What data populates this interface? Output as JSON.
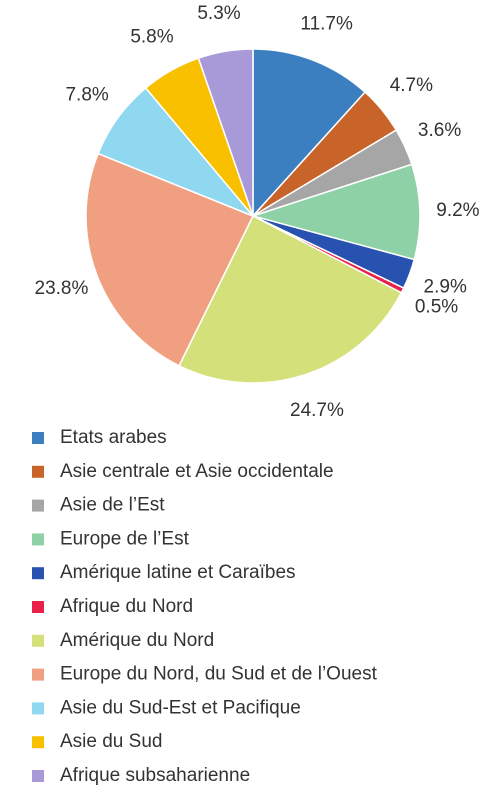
{
  "chart_data": {
    "type": "pie",
    "categories": [
      "Etats arabes",
      "Asie centrale et Asie occidentale",
      "Asie de l’Est",
      "Europe de l’Est",
      "Amérique latine et Caraïbes",
      "Afrique du Nord",
      "Amérique du Nord",
      "Europe du Nord, du Sud et de l’Ouest",
      "Asie du Sud-Est et Pacifique",
      "Asie du Sud",
      "Afrique subsaharienne"
    ],
    "values": [
      11.7,
      4.7,
      3.6,
      9.2,
      2.9,
      0.5,
      24.7,
      23.8,
      7.8,
      5.8,
      5.3
    ],
    "value_labels": [
      "11.7%",
      "4.7%",
      "3.6%",
      "9.2%",
      "2.9%",
      "0.5%",
      "24.7%",
      "23.8%",
      "7.8%",
      "5.8%",
      "5.3%"
    ],
    "colors": [
      "#3b7fc0",
      "#c8642a",
      "#a6a6a6",
      "#8fd1a6",
      "#2852b0",
      "#e8204a",
      "#d4e17a",
      "#f0a080",
      "#8fd8f0",
      "#f9c000",
      "#a89ad8"
    ],
    "legend": "bottom"
  }
}
